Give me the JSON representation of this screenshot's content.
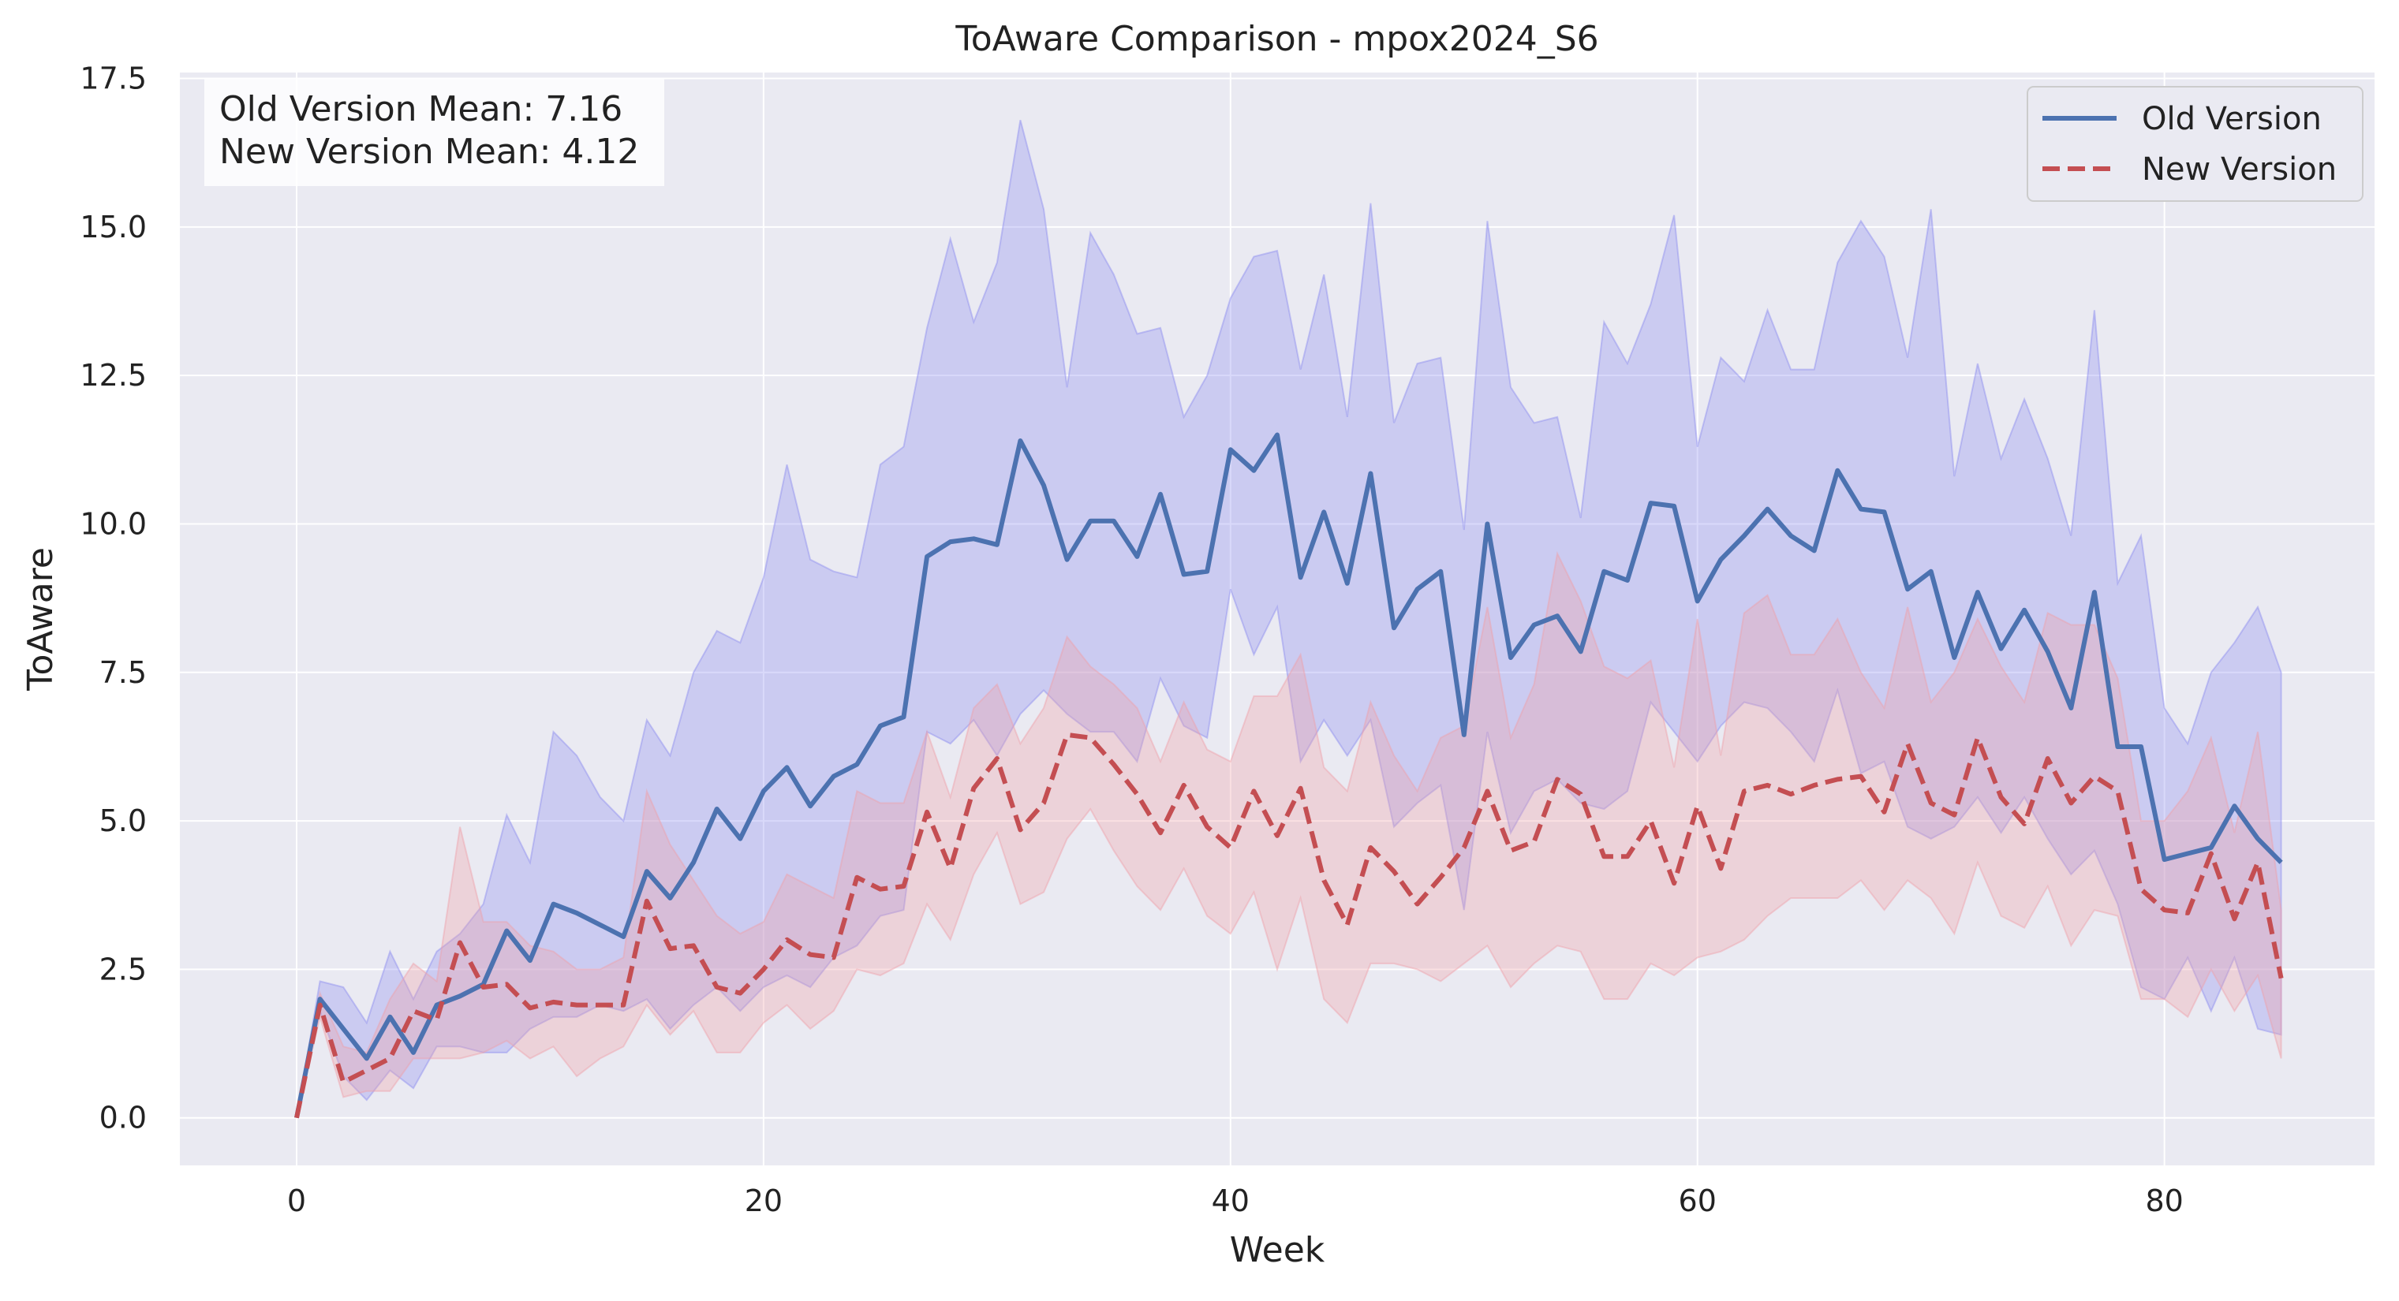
{
  "chart_data": {
    "type": "line",
    "title": "ToAware Comparison - mpox2024_S6",
    "xlabel": "Week",
    "ylabel": "ToAware",
    "xlim": [
      -5,
      89
    ],
    "ylim": [
      -0.8,
      17.6
    ],
    "xticks": [
      0,
      20,
      40,
      60,
      80
    ],
    "yticks": [
      0.0,
      2.5,
      5.0,
      7.5,
      10.0,
      12.5,
      15.0,
      17.5
    ],
    "xtick_labels": [
      "0",
      "20",
      "40",
      "60",
      "80"
    ],
    "ytick_labels": [
      "0.0",
      "2.5",
      "5.0",
      "7.5",
      "10.0",
      "12.5",
      "15.0",
      "17.5"
    ],
    "grid": true,
    "legend_position": "top-right",
    "stats_box": {
      "line1": "Old Version Mean: 7.16",
      "line2": "New Version Mean: 4.12"
    },
    "x": [
      0,
      1,
      2,
      3,
      4,
      5,
      6,
      7,
      8,
      9,
      10,
      11,
      12,
      13,
      14,
      15,
      16,
      17,
      18,
      19,
      20,
      21,
      22,
      23,
      24,
      25,
      26,
      27,
      28,
      29,
      30,
      31,
      32,
      33,
      34,
      35,
      36,
      37,
      38,
      39,
      40,
      41,
      42,
      43,
      44,
      45,
      46,
      47,
      48,
      49,
      50,
      51,
      52,
      53,
      54,
      55,
      56,
      57,
      58,
      59,
      60,
      61,
      62,
      63,
      64,
      65,
      66,
      67,
      68,
      69,
      70,
      71,
      72,
      73,
      74,
      75,
      76,
      77,
      78,
      79,
      80,
      81,
      82,
      83,
      84,
      85
    ],
    "series": [
      {
        "name": "Old Version",
        "color": "#4c72b0",
        "band_color": "#8c8cf0",
        "line_style": "solid",
        "values": [
          0.0,
          2.0,
          1.5,
          1.0,
          1.7,
          1.1,
          1.9,
          2.05,
          2.25,
          3.15,
          2.65,
          3.6,
          3.45,
          3.25,
          3.05,
          4.15,
          3.7,
          4.3,
          5.2,
          4.7,
          5.5,
          5.9,
          5.25,
          5.75,
          5.95,
          6.6,
          6.75,
          9.45,
          9.7,
          9.75,
          9.65,
          11.4,
          10.65,
          9.4,
          10.05,
          10.05,
          9.45,
          10.5,
          9.15,
          9.2,
          11.25,
          10.9,
          11.5,
          9.1,
          10.2,
          9.0,
          10.85,
          8.25,
          8.9,
          9.2,
          6.45,
          10.0,
          7.75,
          8.3,
          8.45,
          7.85,
          9.2,
          9.05,
          10.35,
          10.3,
          8.7,
          9.4,
          9.8,
          10.25,
          9.8,
          9.55,
          10.9,
          10.25,
          10.2,
          8.9,
          9.2,
          7.75,
          8.85,
          7.9,
          8.55,
          7.85,
          6.9,
          8.85,
          6.25,
          6.25,
          4.35,
          4.45,
          4.55,
          5.25,
          4.7,
          4.3
        ],
        "upper": [
          0.0,
          2.3,
          2.2,
          1.6,
          2.8,
          2.0,
          2.8,
          3.1,
          3.6,
          5.1,
          4.3,
          6.5,
          6.1,
          5.4,
          5.0,
          6.7,
          6.1,
          7.5,
          8.2,
          8.0,
          9.1,
          11.0,
          9.4,
          9.2,
          9.1,
          11.0,
          11.3,
          13.3,
          14.8,
          13.4,
          14.4,
          16.8,
          15.3,
          12.3,
          14.9,
          14.2,
          13.2,
          13.3,
          11.8,
          12.5,
          13.8,
          14.5,
          14.6,
          12.6,
          14.2,
          11.8,
          15.4,
          11.7,
          12.7,
          12.8,
          9.9,
          15.1,
          12.3,
          11.7,
          11.8,
          10.1,
          13.4,
          12.7,
          13.7,
          15.2,
          11.3,
          12.8,
          12.4,
          13.6,
          12.6,
          12.6,
          14.4,
          15.1,
          14.5,
          12.8,
          15.3,
          10.8,
          12.7,
          11.1,
          12.1,
          11.1,
          9.8,
          13.6,
          9.0,
          9.8,
          6.9,
          6.3,
          7.5,
          8.0,
          8.6,
          7.5
        ],
        "lower": [
          0.0,
          1.8,
          0.7,
          0.3,
          0.8,
          0.5,
          1.2,
          1.2,
          1.1,
          1.1,
          1.5,
          1.7,
          1.7,
          1.9,
          1.8,
          2.0,
          1.5,
          1.9,
          2.2,
          1.8,
          2.2,
          2.4,
          2.2,
          2.7,
          2.9,
          3.4,
          3.5,
          6.5,
          6.3,
          6.7,
          6.1,
          6.8,
          7.2,
          6.8,
          6.5,
          6.5,
          6.0,
          7.4,
          6.6,
          6.4,
          8.9,
          7.8,
          8.6,
          6.0,
          6.7,
          6.1,
          6.7,
          4.9,
          5.3,
          5.6,
          3.5,
          6.5,
          4.8,
          5.5,
          5.7,
          5.3,
          5.2,
          5.5,
          7.0,
          6.5,
          6.0,
          6.6,
          7.0,
          6.9,
          6.5,
          6.0,
          7.2,
          5.8,
          6.0,
          4.9,
          4.7,
          4.9,
          5.4,
          4.8,
          5.4,
          4.7,
          4.1,
          4.5,
          3.6,
          2.2,
          2.0,
          2.7,
          1.8,
          2.7,
          1.5,
          1.4
        ],
        "mean_label": "Old Version Mean: 7.16"
      },
      {
        "name": "New Version",
        "color": "#c44e52",
        "band_color": "#f0a0a8",
        "line_style": "dashed",
        "values": [
          0.0,
          1.9,
          0.6,
          0.8,
          1.0,
          1.8,
          1.65,
          2.95,
          2.2,
          2.25,
          1.85,
          1.95,
          1.9,
          1.9,
          1.9,
          3.65,
          2.85,
          2.9,
          2.2,
          2.1,
          2.5,
          3.0,
          2.75,
          2.7,
          4.05,
          3.85,
          3.9,
          5.15,
          4.2,
          5.55,
          6.05,
          4.85,
          5.3,
          6.45,
          6.4,
          5.95,
          5.45,
          4.8,
          5.6,
          4.9,
          4.55,
          5.5,
          4.75,
          5.55,
          4.0,
          3.25,
          4.55,
          4.15,
          3.6,
          4.05,
          4.55,
          5.5,
          4.5,
          4.65,
          5.7,
          5.45,
          4.4,
          4.4,
          5.0,
          3.95,
          5.25,
          4.2,
          5.5,
          5.6,
          5.45,
          5.6,
          5.7,
          5.75,
          5.15,
          6.3,
          5.3,
          5.1,
          6.4,
          5.4,
          4.95,
          6.05,
          5.3,
          5.75,
          5.5,
          3.85,
          3.5,
          3.45,
          4.45,
          3.35,
          4.3,
          2.35
        ],
        "upper": [
          0.0,
          2.1,
          1.2,
          1.1,
          2.0,
          2.6,
          2.3,
          4.9,
          3.3,
          3.3,
          2.9,
          2.8,
          2.5,
          2.5,
          2.7,
          5.5,
          4.6,
          4.0,
          3.4,
          3.1,
          3.3,
          4.1,
          3.9,
          3.7,
          5.5,
          5.3,
          5.3,
          6.5,
          5.4,
          6.9,
          7.3,
          6.3,
          6.9,
          8.1,
          7.6,
          7.3,
          6.9,
          6.0,
          7.0,
          6.2,
          6.0,
          7.1,
          7.1,
          7.8,
          5.9,
          5.5,
          7.0,
          6.1,
          5.5,
          6.4,
          6.6,
          8.6,
          6.4,
          7.3,
          9.5,
          8.7,
          7.6,
          7.4,
          7.7,
          5.9,
          8.4,
          6.1,
          8.5,
          8.8,
          7.8,
          7.8,
          8.4,
          7.5,
          6.9,
          8.6,
          7.0,
          7.5,
          8.4,
          7.6,
          7.0,
          8.5,
          8.3,
          8.3,
          7.4,
          5.0,
          5.0,
          5.5,
          6.4,
          4.8,
          6.5,
          3.5
        ],
        "lower": [
          0.0,
          1.7,
          0.35,
          0.45,
          0.45,
          1.0,
          1.0,
          1.0,
          1.1,
          1.3,
          1.0,
          1.2,
          0.7,
          1.0,
          1.2,
          1.9,
          1.4,
          1.8,
          1.1,
          1.1,
          1.6,
          1.9,
          1.5,
          1.8,
          2.5,
          2.4,
          2.6,
          3.6,
          3.0,
          4.1,
          4.8,
          3.6,
          3.8,
          4.7,
          5.2,
          4.5,
          3.9,
          3.5,
          4.2,
          3.4,
          3.1,
          3.8,
          2.5,
          3.7,
          2.0,
          1.6,
          2.6,
          2.6,
          2.5,
          2.3,
          2.6,
          2.9,
          2.2,
          2.6,
          2.9,
          2.8,
          2.0,
          2.0,
          2.6,
          2.4,
          2.7,
          2.8,
          3.0,
          3.4,
          3.7,
          3.7,
          3.7,
          4.0,
          3.5,
          4.0,
          3.7,
          3.1,
          4.3,
          3.4,
          3.2,
          3.9,
          2.9,
          3.5,
          3.4,
          2.0,
          2.0,
          1.7,
          2.5,
          1.8,
          2.4,
          1.0
        ],
        "mean_label": "New Version Mean: 4.12"
      }
    ]
  }
}
